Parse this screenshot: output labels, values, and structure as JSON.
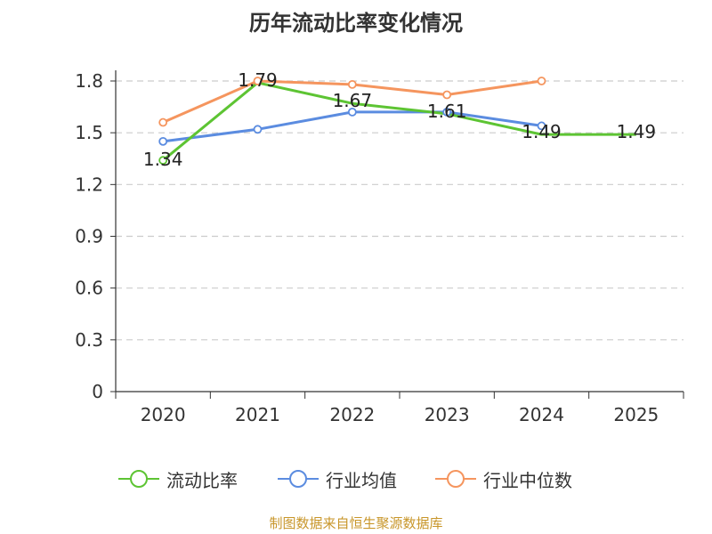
{
  "chart_data": {
    "type": "line",
    "title": "历年流动比率变化情况",
    "categories": [
      "2020",
      "2021",
      "2022",
      "2023",
      "2024",
      "2025"
    ],
    "y_ticks": [
      "0",
      "0.3",
      "0.6",
      "0.9",
      "1.2",
      "1.5",
      "1.8"
    ],
    "ylim": [
      0,
      1.8
    ],
    "grid": true,
    "legend_position": "bottom",
    "series": [
      {
        "name": "流动比率",
        "color": "#5dc433",
        "values": [
          1.34,
          1.79,
          1.67,
          1.61,
          1.49,
          1.49
        ],
        "labels": [
          "1.34",
          "1.79",
          "1.67",
          "1.61",
          "1.49",
          "1.49"
        ],
        "markers": [
          true,
          false,
          false,
          false,
          false,
          false
        ]
      },
      {
        "name": "行业均值",
        "color": "#5b8ce0",
        "values": [
          1.45,
          1.52,
          1.62,
          1.62,
          1.54,
          null
        ],
        "markers": [
          true,
          true,
          true,
          true,
          true,
          false
        ]
      },
      {
        "name": "行业中位数",
        "color": "#f5955e",
        "values": [
          1.56,
          1.8,
          1.78,
          1.72,
          1.8,
          null
        ],
        "markers": [
          true,
          true,
          true,
          true,
          true,
          false
        ]
      }
    ]
  },
  "source": "制图数据来自恒生聚源数据库"
}
